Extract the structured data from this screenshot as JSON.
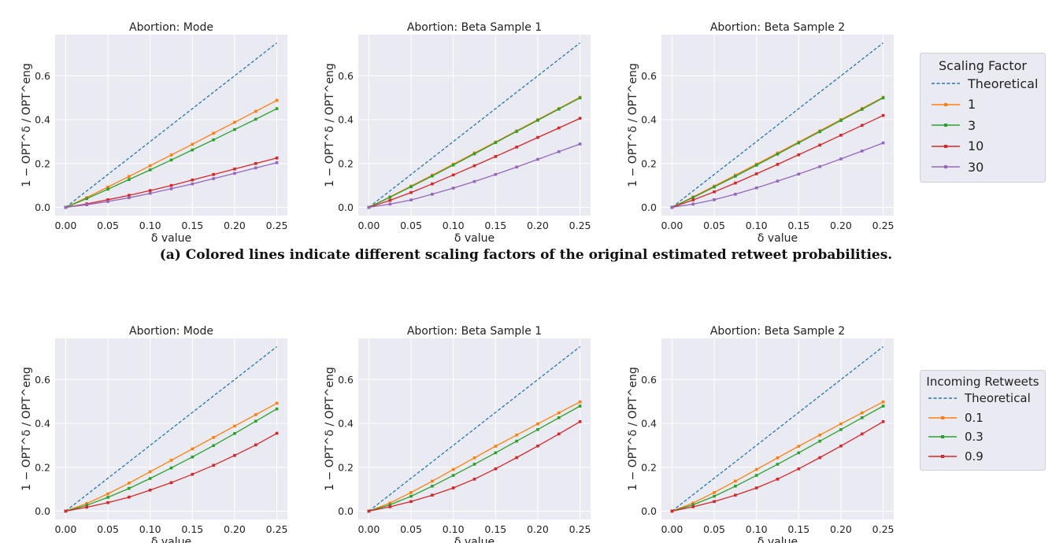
{
  "caption": "(a) Colored lines indicate different scaling factors of the original estimated retweet probabilities.",
  "colors": {
    "Theoretical": "#1f77b4",
    "c1": "#ff7f0e",
    "c2": "#2ca02c",
    "c3": "#d62728",
    "c4": "#9467bd"
  },
  "legends": [
    {
      "title": "Scaling Factor",
      "entries": [
        {
          "label": "Theoretical",
          "color": "#1f77b4",
          "dashed": true
        },
        {
          "label": "1",
          "color": "#ff7f0e",
          "dashed": false
        },
        {
          "label": "3",
          "color": "#2ca02c",
          "dashed": false
        },
        {
          "label": "10",
          "color": "#d62728",
          "dashed": false
        },
        {
          "label": "30",
          "color": "#9467bd",
          "dashed": false
        }
      ]
    },
    {
      "title": "Incoming Retweets",
      "entries": [
        {
          "label": "Theoretical",
          "color": "#1f77b4",
          "dashed": true
        },
        {
          "label": "0.1",
          "color": "#ff7f0e",
          "dashed": false
        },
        {
          "label": "0.3",
          "color": "#2ca02c",
          "dashed": false
        },
        {
          "label": "0.9",
          "color": "#d62728",
          "dashed": false
        }
      ]
    }
  ],
  "chart_data": [
    {
      "type": "line",
      "title": "Abortion: Mode",
      "xlabel": "δ value",
      "ylabel": "1 − OPT^δ / OPT^eng",
      "xlim": [
        -0.0125,
        0.2625
      ],
      "ylim": [
        -0.0375,
        0.7875
      ],
      "xticks": [
        "0.00",
        "0.05",
        "0.10",
        "0.15",
        "0.20",
        "0.25"
      ],
      "yticks": [
        "0.0",
        "0.2",
        "0.4",
        "0.6"
      ],
      "x": [
        0,
        0.025,
        0.05,
        0.075,
        0.1,
        0.125,
        0.15,
        0.175,
        0.2,
        0.225,
        0.25
      ],
      "series": [
        {
          "name": "Theoretical",
          "color": "#1f77b4",
          "dashed": true,
          "values": [
            0,
            0.075,
            0.15,
            0.225,
            0.3,
            0.375,
            0.45,
            0.525,
            0.6,
            0.675,
            0.75
          ]
        },
        {
          "name": "1",
          "color": "#ff7f0e",
          "values": [
            0,
            0.045,
            0.093,
            0.141,
            0.19,
            0.239,
            0.288,
            0.338,
            0.388,
            0.438,
            0.488
          ]
        },
        {
          "name": "3",
          "color": "#2ca02c",
          "values": [
            0,
            0.04,
            0.083,
            0.127,
            0.171,
            0.216,
            0.262,
            0.308,
            0.355,
            0.402,
            0.45
          ]
        },
        {
          "name": "10",
          "color": "#d62728",
          "values": [
            0,
            0.016,
            0.035,
            0.055,
            0.077,
            0.1,
            0.125,
            0.15,
            0.175,
            0.2,
            0.225
          ]
        },
        {
          "name": "30",
          "color": "#9467bd",
          "values": [
            0,
            0.012,
            0.027,
            0.044,
            0.064,
            0.085,
            0.107,
            0.131,
            0.155,
            0.18,
            0.204
          ]
        }
      ]
    },
    {
      "type": "line",
      "title": "Abortion: Beta Sample 1",
      "xlabel": "δ value",
      "ylabel": "1 − OPT^δ / OPT^eng",
      "xlim": [
        -0.0125,
        0.2625
      ],
      "ylim": [
        -0.0375,
        0.7875
      ],
      "xticks": [
        "0.00",
        "0.05",
        "0.10",
        "0.15",
        "0.20",
        "0.25"
      ],
      "yticks": [
        "0.0",
        "0.2",
        "0.4",
        "0.6"
      ],
      "x": [
        0,
        0.025,
        0.05,
        0.075,
        0.1,
        0.125,
        0.15,
        0.175,
        0.2,
        0.225,
        0.25
      ],
      "series": [
        {
          "name": "Theoretical",
          "color": "#1f77b4",
          "dashed": true,
          "values": [
            0,
            0.075,
            0.15,
            0.225,
            0.3,
            0.375,
            0.45,
            0.525,
            0.6,
            0.675,
            0.75
          ]
        },
        {
          "name": "1",
          "color": "#ff7f0e",
          "values": [
            0,
            0.048,
            0.097,
            0.147,
            0.197,
            0.248,
            0.298,
            0.349,
            0.4,
            0.451,
            0.502
          ]
        },
        {
          "name": "3",
          "color": "#2ca02c",
          "values": [
            0,
            0.046,
            0.094,
            0.143,
            0.193,
            0.244,
            0.295,
            0.346,
            0.397,
            0.448,
            0.499
          ]
        },
        {
          "name": "10",
          "color": "#d62728",
          "values": [
            0,
            0.032,
            0.068,
            0.107,
            0.148,
            0.19,
            0.232,
            0.275,
            0.319,
            0.362,
            0.406
          ]
        },
        {
          "name": "30",
          "color": "#9467bd",
          "values": [
            0,
            0.015,
            0.034,
            0.06,
            0.088,
            0.118,
            0.15,
            0.184,
            0.219,
            0.254,
            0.289
          ]
        }
      ]
    },
    {
      "type": "line",
      "title": "Abortion: Beta Sample 2",
      "xlabel": "δ value",
      "ylabel": "1 − OPT^δ / OPT^eng",
      "xlim": [
        -0.0125,
        0.2625
      ],
      "ylim": [
        -0.0375,
        0.7875
      ],
      "xticks": [
        "0.00",
        "0.05",
        "0.10",
        "0.15",
        "0.20",
        "0.25"
      ],
      "yticks": [
        "0.0",
        "0.2",
        "0.4",
        "0.6"
      ],
      "x": [
        0,
        0.025,
        0.05,
        0.075,
        0.1,
        0.125,
        0.15,
        0.175,
        0.2,
        0.225,
        0.25
      ],
      "series": [
        {
          "name": "Theoretical",
          "color": "#1f77b4",
          "dashed": true,
          "values": [
            0,
            0.075,
            0.15,
            0.225,
            0.3,
            0.375,
            0.45,
            0.525,
            0.6,
            0.675,
            0.75
          ]
        },
        {
          "name": "1",
          "color": "#ff7f0e",
          "values": [
            0,
            0.048,
            0.097,
            0.147,
            0.197,
            0.248,
            0.298,
            0.349,
            0.4,
            0.451,
            0.502
          ]
        },
        {
          "name": "3",
          "color": "#2ca02c",
          "values": [
            0,
            0.045,
            0.093,
            0.142,
            0.192,
            0.243,
            0.294,
            0.345,
            0.396,
            0.447,
            0.499
          ]
        },
        {
          "name": "10",
          "color": "#d62728",
          "values": [
            0,
            0.034,
            0.071,
            0.111,
            0.153,
            0.196,
            0.24,
            0.284,
            0.329,
            0.374,
            0.419
          ]
        },
        {
          "name": "30",
          "color": "#9467bd",
          "values": [
            0,
            0.015,
            0.035,
            0.06,
            0.089,
            0.12,
            0.152,
            0.186,
            0.221,
            0.257,
            0.294
          ]
        }
      ]
    },
    {
      "type": "line",
      "title": "Abortion: Mode",
      "xlabel": "δ value",
      "ylabel": "1 − OPT^δ / OPT^eng",
      "xlim": [
        -0.0125,
        0.2625
      ],
      "ylim": [
        -0.0375,
        0.7875
      ],
      "xticks": [
        "0.00",
        "0.05",
        "0.10",
        "0.15",
        "0.20",
        "0.25"
      ],
      "yticks": [
        "0.0",
        "0.2",
        "0.4",
        "0.6"
      ],
      "x": [
        0,
        0.025,
        0.05,
        0.075,
        0.1,
        0.125,
        0.15,
        0.175,
        0.2,
        0.225,
        0.25
      ],
      "series": [
        {
          "name": "Theoretical",
          "color": "#1f77b4",
          "dashed": true,
          "values": [
            0,
            0.075,
            0.15,
            0.225,
            0.3,
            0.375,
            0.45,
            0.525,
            0.6,
            0.675,
            0.75
          ]
        },
        {
          "name": "0.1",
          "color": "#ff7f0e",
          "values": [
            0,
            0.035,
            0.079,
            0.128,
            0.18,
            0.232,
            0.284,
            0.336,
            0.388,
            0.44,
            0.492
          ]
        },
        {
          "name": "0.3",
          "color": "#2ca02c",
          "values": [
            0,
            0.027,
            0.063,
            0.104,
            0.149,
            0.197,
            0.247,
            0.299,
            0.354,
            0.41,
            0.466
          ]
        },
        {
          "name": "0.9",
          "color": "#d62728",
          "values": [
            0,
            0.018,
            0.039,
            0.064,
            0.096,
            0.13,
            0.168,
            0.209,
            0.254,
            0.302,
            0.355
          ]
        }
      ]
    },
    {
      "type": "line",
      "title": "Abortion: Beta Sample 1",
      "xlabel": "δ value",
      "ylabel": "1 − OPT^δ / OPT^eng",
      "xlim": [
        -0.0125,
        0.2625
      ],
      "ylim": [
        -0.0375,
        0.7875
      ],
      "xticks": [
        "0.00",
        "0.05",
        "0.10",
        "0.15",
        "0.20",
        "0.25"
      ],
      "yticks": [
        "0.0",
        "0.2",
        "0.4",
        "0.6"
      ],
      "x": [
        0,
        0.025,
        0.05,
        0.075,
        0.1,
        0.125,
        0.15,
        0.175,
        0.2,
        0.225,
        0.25
      ],
      "series": [
        {
          "name": "Theoretical",
          "color": "#1f77b4",
          "dashed": true,
          "values": [
            0,
            0.075,
            0.15,
            0.225,
            0.3,
            0.375,
            0.45,
            0.525,
            0.6,
            0.675,
            0.75
          ]
        },
        {
          "name": "0.1",
          "color": "#ff7f0e",
          "values": [
            0,
            0.037,
            0.085,
            0.137,
            0.19,
            0.243,
            0.296,
            0.347,
            0.398,
            0.448,
            0.498
          ]
        },
        {
          "name": "0.3",
          "color": "#2ca02c",
          "values": [
            0,
            0.029,
            0.068,
            0.114,
            0.163,
            0.214,
            0.266,
            0.319,
            0.372,
            0.426,
            0.479
          ]
        },
        {
          "name": "0.9",
          "color": "#d62728",
          "values": [
            0,
            0.02,
            0.044,
            0.073,
            0.106,
            0.146,
            0.193,
            0.244,
            0.297,
            0.352,
            0.408
          ]
        }
      ]
    },
    {
      "type": "line",
      "title": "Abortion: Beta Sample 2",
      "xlabel": "δ value",
      "ylabel": "1 − OPT^δ / OPT^eng",
      "xlim": [
        -0.0125,
        0.2625
      ],
      "ylim": [
        -0.0375,
        0.7875
      ],
      "xticks": [
        "0.00",
        "0.05",
        "0.10",
        "0.15",
        "0.20",
        "0.25"
      ],
      "yticks": [
        "0.0",
        "0.2",
        "0.4",
        "0.6"
      ],
      "x": [
        0,
        0.025,
        0.05,
        0.075,
        0.1,
        0.125,
        0.15,
        0.175,
        0.2,
        0.225,
        0.25
      ],
      "series": [
        {
          "name": "Theoretical",
          "color": "#1f77b4",
          "dashed": true,
          "values": [
            0,
            0.075,
            0.15,
            0.225,
            0.3,
            0.375,
            0.45,
            0.525,
            0.6,
            0.675,
            0.75
          ]
        },
        {
          "name": "0.1",
          "color": "#ff7f0e",
          "values": [
            0,
            0.037,
            0.085,
            0.137,
            0.19,
            0.243,
            0.296,
            0.347,
            0.398,
            0.448,
            0.498
          ]
        },
        {
          "name": "0.3",
          "color": "#2ca02c",
          "values": [
            0,
            0.029,
            0.068,
            0.114,
            0.163,
            0.214,
            0.266,
            0.319,
            0.372,
            0.426,
            0.479
          ]
        },
        {
          "name": "0.9",
          "color": "#d62728",
          "values": [
            0,
            0.02,
            0.044,
            0.073,
            0.106,
            0.146,
            0.193,
            0.244,
            0.297,
            0.352,
            0.408
          ]
        }
      ]
    }
  ]
}
